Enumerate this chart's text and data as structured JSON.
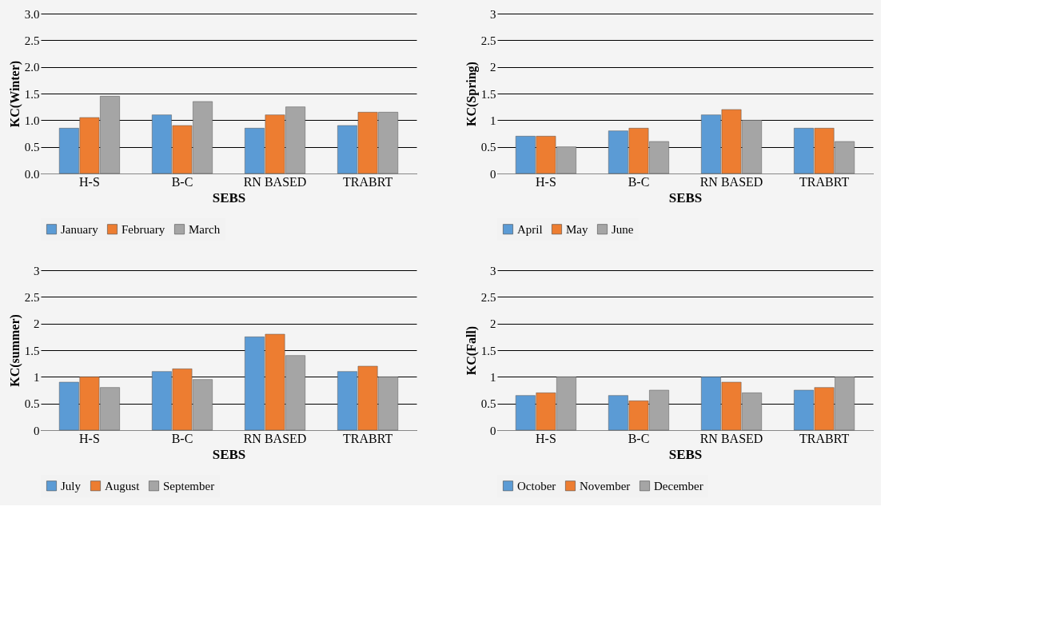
{
  "chart_data": [
    {
      "type": "bar",
      "xlabel": "SEBS",
      "ylabel": "KC(Winter)",
      "categories": [
        "H-S",
        "B-C",
        "RN BASED",
        "TRABRT"
      ],
      "series": [
        {
          "name": "January",
          "color": "#5b9bd5",
          "values": [
            0.85,
            1.1,
            0.85,
            0.9
          ]
        },
        {
          "name": "February",
          "color": "#ed7d31",
          "values": [
            1.05,
            0.9,
            1.1,
            1.15
          ]
        },
        {
          "name": "March",
          "color": "#a5a5a5",
          "values": [
            1.45,
            1.35,
            1.25,
            1.15
          ]
        }
      ],
      "ylim": [
        0,
        3
      ],
      "yticks": [
        {
          "value": 0,
          "label": "0.0"
        },
        {
          "value": 0.5,
          "label": "0.5"
        },
        {
          "value": 1,
          "label": "1.0"
        },
        {
          "value": 1.5,
          "label": "1.5"
        },
        {
          "value": 2,
          "label": "2.0"
        },
        {
          "value": 2.5,
          "label": "2.5"
        },
        {
          "value": 3,
          "label": "3.0"
        }
      ],
      "grid": "y",
      "legend": "bottom"
    },
    {
      "type": "bar",
      "xlabel": "SEBS",
      "ylabel": "KC(Spring)",
      "categories": [
        "H-S",
        "B-C",
        "RN BASED",
        "TRABRT"
      ],
      "series": [
        {
          "name": "April",
          "color": "#5b9bd5",
          "values": [
            0.7,
            0.8,
            1.1,
            0.85
          ]
        },
        {
          "name": "May",
          "color": "#ed7d31",
          "values": [
            0.7,
            0.85,
            1.2,
            0.85
          ]
        },
        {
          "name": "June",
          "color": "#a5a5a5",
          "values": [
            0.5,
            0.6,
            1.0,
            0.6
          ]
        }
      ],
      "ylim": [
        0,
        3
      ],
      "yticks": [
        0,
        0.5,
        1,
        1.5,
        2,
        2.5,
        3
      ],
      "grid": "y",
      "legend": "bottom"
    },
    {
      "type": "bar",
      "xlabel": "SEBS",
      "ylabel": "KC(summer)",
      "categories": [
        "H-S",
        "B-C",
        "RN BASED",
        "TRABRT"
      ],
      "series": [
        {
          "name": "July",
          "color": "#5b9bd5",
          "values": [
            0.9,
            1.1,
            1.75,
            1.1
          ]
        },
        {
          "name": "August",
          "color": "#ed7d31",
          "values": [
            1.0,
            1.15,
            1.8,
            1.2
          ]
        },
        {
          "name": "September",
          "color": "#a5a5a5",
          "values": [
            0.8,
            0.95,
            1.4,
            1.0
          ]
        }
      ],
      "ylim": [
        0,
        3
      ],
      "yticks": [
        0,
        0.5,
        1,
        1.5,
        2,
        2.5,
        3
      ],
      "grid": "y",
      "legend": "bottom"
    },
    {
      "type": "bar",
      "xlabel": "SEBS",
      "ylabel": "KC(Fall)",
      "categories": [
        "H-S",
        "B-C",
        "RN BASED",
        "TRABRT"
      ],
      "series": [
        {
          "name": "October",
          "color": "#5b9bd5",
          "values": [
            0.65,
            0.65,
            1.0,
            0.75
          ]
        },
        {
          "name": "November",
          "color": "#ed7d31",
          "values": [
            0.7,
            0.55,
            0.9,
            0.8
          ]
        },
        {
          "name": "December",
          "color": "#a5a5a5",
          "values": [
            1.0,
            0.75,
            0.7,
            1.0
          ]
        }
      ],
      "ylim": [
        0,
        3
      ],
      "yticks": [
        0,
        0.5,
        1,
        1.5,
        2,
        2.5,
        3
      ],
      "grid": "y",
      "legend": "bottom"
    }
  ]
}
